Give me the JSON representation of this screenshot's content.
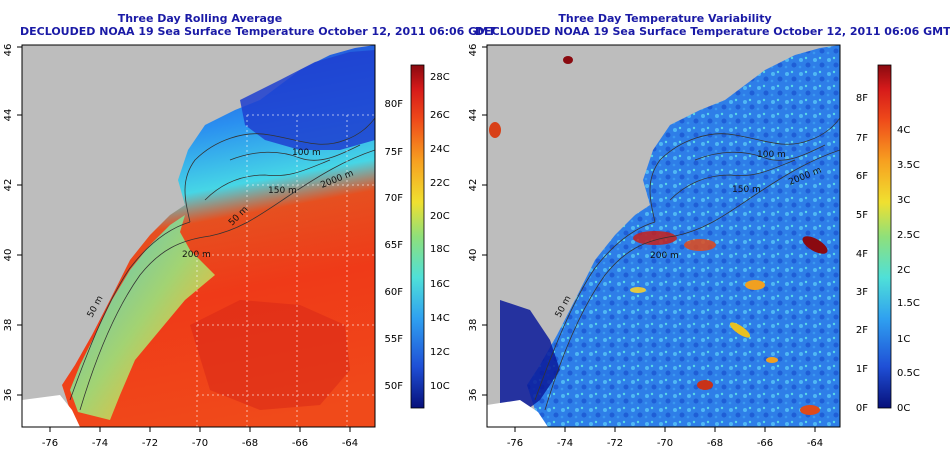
{
  "left_panel": {
    "title": "Three Day Rolling Average",
    "subtitle": "DECLOUDED NOAA 19 Sea Surface Temperature October 12, 2011 06:06 GMT",
    "x_ticks": [
      "-76",
      "-74",
      "-72",
      "-70",
      "-68",
      "-66",
      "-64"
    ],
    "y_ticks": [
      "36",
      "38",
      "40",
      "42",
      "44",
      "46"
    ],
    "contour_labels": [
      "50 m",
      "200 m",
      "100 m",
      "150 m",
      "2000 m",
      "50 m"
    ],
    "colorbar_c": [
      "28C",
      "26C",
      "24C",
      "22C",
      "20C",
      "18C",
      "16C",
      "14C",
      "12C",
      "10C"
    ],
    "colorbar_f": [
      "80F",
      "75F",
      "70F",
      "65F",
      "60F",
      "55F",
      "50F"
    ]
  },
  "right_panel": {
    "title": "Three Day Temperature Variability",
    "subtitle": "DECLOUDED NOAA 19 Sea Surface Temperature October 12, 2011 06:06 GMT",
    "x_ticks": [
      "-76",
      "-74",
      "-72",
      "-70",
      "-68",
      "-66",
      "-64"
    ],
    "y_ticks": [
      "36",
      "38",
      "40",
      "42",
      "44",
      "46"
    ],
    "contour_labels": [
      "100 m",
      "150 m",
      "2000 m",
      "200 m",
      "50 m"
    ],
    "colorbar_c": [
      "4C",
      "3.5C",
      "3C",
      "2.5C",
      "2C",
      "1.5C",
      "1C",
      "0.5C",
      "0C"
    ],
    "colorbar_f": [
      "8F",
      "7F",
      "6F",
      "5F",
      "4F",
      "3F",
      "2F",
      "1F",
      "0F"
    ]
  },
  "colors": {
    "land": "#bdbdbd",
    "title": "#1a1aa6",
    "sst_scale": [
      "#07107a",
      "#1f4fd6",
      "#2fa0f0",
      "#4fe0d8",
      "#8fe07a",
      "#f0e030",
      "#f7a020",
      "#ef4a1a",
      "#d61a1a",
      "#8a0a10"
    ]
  }
}
